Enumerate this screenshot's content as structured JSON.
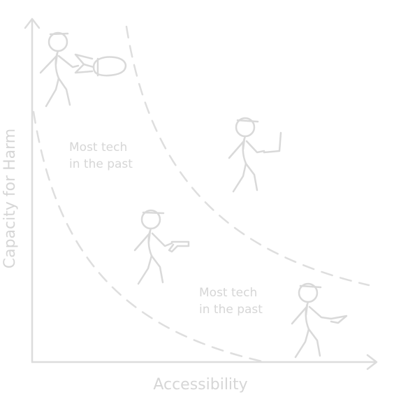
{
  "axes": {
    "x_label": "Accessibility",
    "y_label": "Capacity for Harm"
  },
  "regions": {
    "upper_label_line1": "Most tech",
    "upper_label_line2": "in the past",
    "lower_label_line1": "Most tech",
    "lower_label_line2": "in the past"
  },
  "figures": [
    {
      "holds": "bomb"
    },
    {
      "holds": "laptop"
    },
    {
      "holds": "gun"
    },
    {
      "holds": "knife"
    }
  ],
  "colors": {
    "line": "#dcdcdc",
    "text": "#d6d6d6",
    "background": "#ffffff"
  }
}
